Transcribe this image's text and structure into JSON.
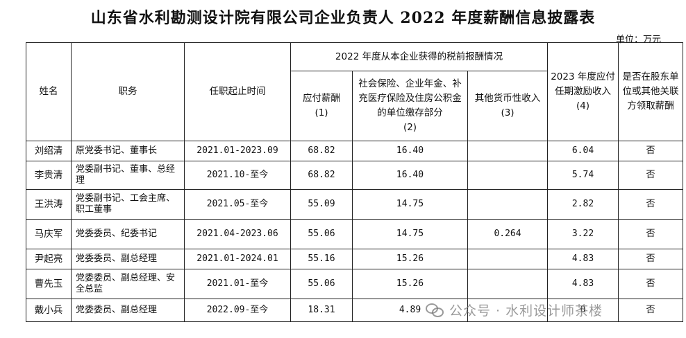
{
  "title": "山东省水利勘测设计院有限公司企业负责人 2022 年度薪酬信息披露表",
  "unit": "单位：万元",
  "headers": {
    "name": "姓名",
    "position": "职务",
    "term": "任职起止时间",
    "group": "2022 年度从本企业获得的税前报酬情况",
    "salary": "应付薪酬",
    "salary_idx": "(1)",
    "social": "社会保险、企业年金、补充医疗保险及住房公积金的单位缴存部分",
    "social_idx": "(2)",
    "other": "其他货币性收入",
    "other_idx": "(3)",
    "incentive": "2023 年度应付任期激励收入",
    "incentive_idx": "(4)",
    "related": "是否在股东单位或其他关联方领取薪酬"
  },
  "rows": [
    {
      "name": "刘绍清",
      "position": "原党委书记、董事长",
      "term": "2021.01-2023.09",
      "salary": "68.82",
      "social": "16.40",
      "other": "",
      "incentive": "6.04",
      "related": "否"
    },
    {
      "name": "李贵清",
      "position": "党委副书记、董事、总经理",
      "term": "2021.10-至今",
      "salary": "68.82",
      "social": "16.40",
      "other": "",
      "incentive": "5.74",
      "related": "否"
    },
    {
      "name": "王洪涛",
      "position": "党委副书记、工会主席、职工董事",
      "term": "2021.05-至今",
      "salary": "55.09",
      "social": "14.75",
      "other": "",
      "incentive": "2.82",
      "related": "否"
    },
    {
      "name": "马庆军",
      "position": "党委委员、纪委书记",
      "term": "2021.04-2023.06",
      "salary": "55.06",
      "social": "14.75",
      "other": "0.264",
      "incentive": "3.22",
      "related": "否"
    },
    {
      "name": "尹起亮",
      "position": "党委委员、副总经理",
      "term": "2021.01-2024.01",
      "salary": "55.16",
      "social": "15.26",
      "other": "",
      "incentive": "4.83",
      "related": "否"
    },
    {
      "name": "曹先玉",
      "position": "党委委员、副总经理、安全总监",
      "term": "2021.01-至今",
      "salary": "55.06",
      "social": "15.26",
      "other": "",
      "incentive": "4.83",
      "related": "否"
    },
    {
      "name": "戴小兵",
      "position": "党委委员、副总经理",
      "term": "2022.09-至今",
      "salary": "18.31",
      "social": "4.89",
      "other": "",
      "incentive": "0",
      "related": "否"
    }
  ],
  "watermark": "公众号 · 水利设计师茶楼"
}
